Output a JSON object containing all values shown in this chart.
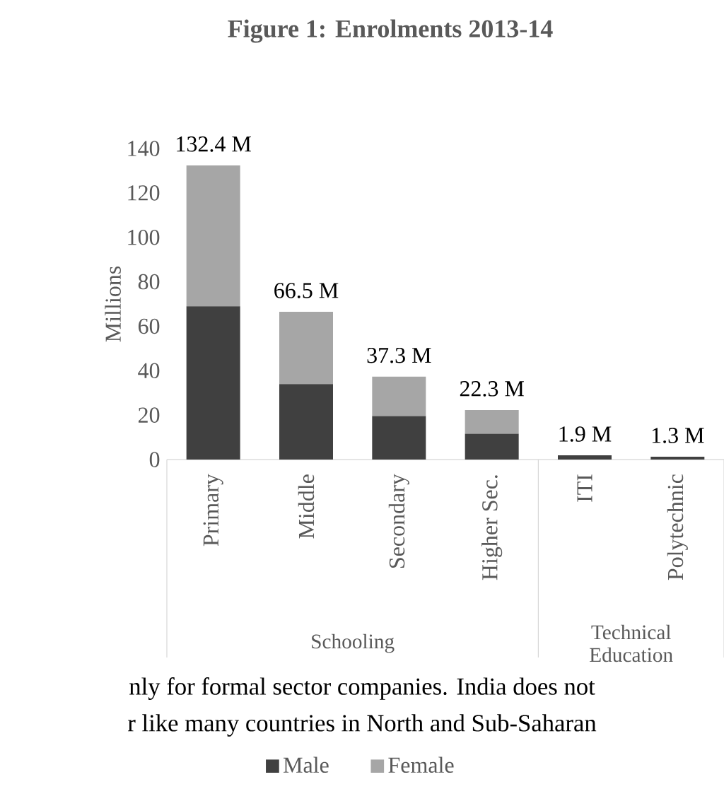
{
  "chart_data": {
    "type": "bar",
    "stacked": true,
    "title": "Figure 1: Enrolments 2013-14",
    "ylabel": "Millions",
    "categories": [
      "Primary",
      "Middle",
      "Secondary",
      "Higher Sec.",
      "ITI",
      "Polytechnic"
    ],
    "series": [
      {
        "name": "Male",
        "color": "#404040",
        "values": [
          69,
          34,
          19.6,
          11.6,
          1.9,
          1.3
        ]
      },
      {
        "name": "Female",
        "color": "#a6a6a6",
        "values": [
          63.4,
          32.5,
          17.7,
          10.7,
          null,
          null
        ]
      }
    ],
    "totals": [
      "132.4 M",
      "66.5 M",
      "37.3 M",
      "22.3 M",
      "1.9 M",
      "1.3 M"
    ],
    "ylim": [
      0,
      140
    ],
    "yticks": [
      0,
      20,
      40,
      60,
      80,
      100,
      120,
      140
    ],
    "grid": false,
    "legend": "bottom",
    "annotations": [
      "Schooling",
      "Technical Education",
      "nly for formal sector companies. India does not",
      "r like many countries in North and Sub-Saharan"
    ]
  }
}
